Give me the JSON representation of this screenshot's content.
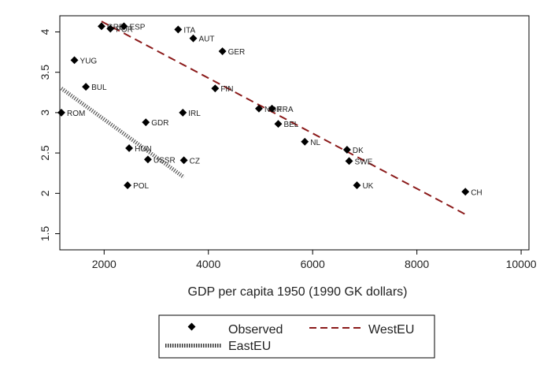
{
  "chart_data": {
    "type": "scatter",
    "title": "",
    "xlabel": "GDP per capita 1950 (1990 GK dollars)",
    "ylabel": "",
    "xlim": [
      1150,
      10150
    ],
    "ylim": [
      1.3,
      4.2
    ],
    "xticks": [
      2000,
      4000,
      6000,
      8000,
      10000
    ],
    "xtick_labels": [
      "2000",
      "4000",
      "6000",
      "8000",
      "10000"
    ],
    "yticks": [
      1.5,
      2,
      2.5,
      3,
      3.5,
      4
    ],
    "ytick_labels": [
      "1.5",
      "2",
      "2.5",
      "3",
      "3.5",
      "4"
    ],
    "grid": false,
    "legend_position": "bottom",
    "series": [
      {
        "name": "Observed",
        "kind": "markers",
        "color": "#000000",
        "points": [
          {
            "label": "GRE",
            "x": 1950,
            "y": 4.07
          },
          {
            "label": "POR",
            "x": 2120,
            "y": 4.04
          },
          {
            "label": "ESP",
            "x": 2380,
            "y": 4.07
          },
          {
            "label": "ITA",
            "x": 3420,
            "y": 4.03
          },
          {
            "label": "AUT",
            "x": 3710,
            "y": 3.92
          },
          {
            "label": "GER",
            "x": 4270,
            "y": 3.76
          },
          {
            "label": "YUG",
            "x": 1430,
            "y": 3.65
          },
          {
            "label": "BUL",
            "x": 1650,
            "y": 3.32
          },
          {
            "label": "FIN",
            "x": 4130,
            "y": 3.3
          },
          {
            "label": "ROM",
            "x": 1180,
            "y": 3.0
          },
          {
            "label": "NOR",
            "x": 4970,
            "y": 3.05
          },
          {
            "label": "FRA",
            "x": 5220,
            "y": 3.05
          },
          {
            "label": "IRL",
            "x": 3510,
            "y": 3.0
          },
          {
            "label": "GDR",
            "x": 2800,
            "y": 2.88
          },
          {
            "label": "BEL",
            "x": 5340,
            "y": 2.86
          },
          {
            "label": "NL",
            "x": 5850,
            "y": 2.64
          },
          {
            "label": "HUN",
            "x": 2480,
            "y": 2.56
          },
          {
            "label": "DK",
            "x": 6660,
            "y": 2.54
          },
          {
            "label": "USSR",
            "x": 2840,
            "y": 2.42
          },
          {
            "label": "CZ",
            "x": 3530,
            "y": 2.41
          },
          {
            "label": "SWE",
            "x": 6700,
            "y": 2.4
          },
          {
            "label": "POL",
            "x": 2450,
            "y": 2.1
          },
          {
            "label": "UK",
            "x": 6850,
            "y": 2.1
          },
          {
            "label": "CH",
            "x": 8930,
            "y": 2.02
          }
        ]
      },
      {
        "name": "WestEU",
        "kind": "dashed-line",
        "color": "#8b1a1a",
        "x": [
          1950,
          8930
        ],
        "y": [
          4.13,
          1.74
        ]
      },
      {
        "name": "EastEU",
        "kind": "hatched-line",
        "color": "#555555",
        "x": [
          1180,
          3530
        ],
        "y": [
          3.3,
          2.2
        ]
      }
    ]
  }
}
